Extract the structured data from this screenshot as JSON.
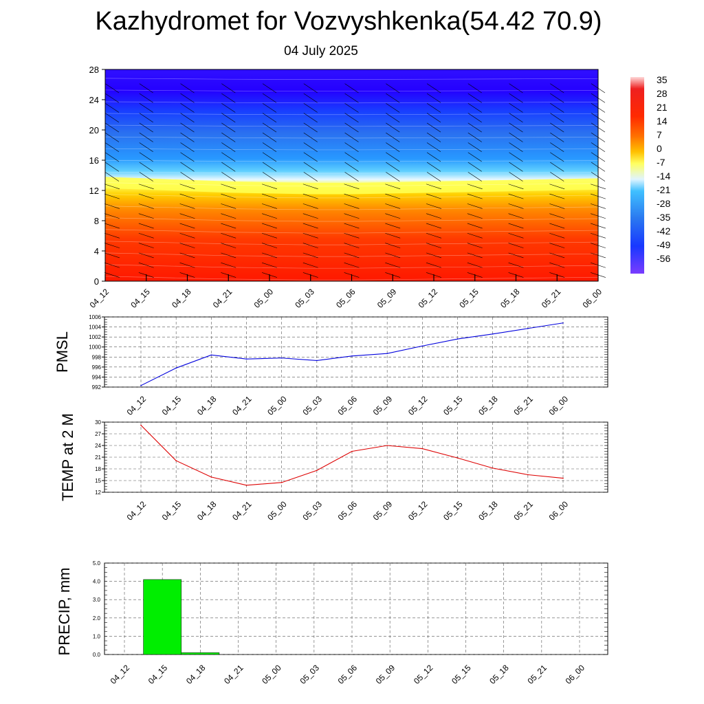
{
  "title": "Kazhydromet for Vozvyshkenka(54.42 70.9)",
  "subtitle": "04 July 2025",
  "chart_data": [
    {
      "type": "heatmap",
      "title": "",
      "ylim": [
        0,
        28
      ],
      "yticks": [
        "0",
        "4",
        "8",
        "12",
        "16",
        "20",
        "24",
        "28"
      ],
      "x": [
        "04_12",
        "04_15",
        "04_18",
        "04_21",
        "05_00",
        "05_03",
        "05_06",
        "05_09",
        "05_12",
        "05_15",
        "05_18",
        "05_21",
        "06_00"
      ],
      "colorbar_labels": [
        "35",
        "28",
        "21",
        "14",
        "7",
        "0",
        "-7",
        "-14",
        "-21",
        "-28",
        "-35",
        "-42",
        "-49",
        "-56"
      ],
      "freezing_level": [
        13.2,
        13.0,
        12.8,
        12.6,
        12.5,
        12.4,
        12.4,
        12.5,
        12.6,
        12.7,
        12.8,
        12.9,
        13.0
      ],
      "colors": {
        "warm": "#ff2200",
        "hot": "#ff5500",
        "yellow": "#ffff40",
        "cyan": "#40c8ff",
        "blue": "#1040ff",
        "dark": "#2a00ff"
      }
    },
    {
      "type": "line",
      "ylabel": "PMSL",
      "x": [
        "04_12",
        "04_15",
        "04_18",
        "04_21",
        "05_00",
        "05_03",
        "05_06",
        "05_09",
        "05_12",
        "05_15",
        "05_18",
        "05_21",
        "06_00"
      ],
      "ylim": [
        992,
        1006
      ],
      "yticks": [
        "992",
        "994",
        "996",
        "998",
        "1000",
        "1002",
        "1004",
        "1006"
      ],
      "series": [
        {
          "values": [
            992.3,
            995.8,
            998.4,
            997.6,
            997.8,
            997.3,
            998.2,
            998.7,
            1000.2,
            1001.6,
            1002.6,
            1003.7,
            1004.8
          ],
          "color": "#0000dd"
        }
      ]
    },
    {
      "type": "line",
      "ylabel": "TEMP at 2 M",
      "x": [
        "04_12",
        "04_15",
        "04_18",
        "04_21",
        "05_00",
        "05_03",
        "05_06",
        "05_09",
        "05_12",
        "05_15",
        "05_18",
        "05_21",
        "06_00"
      ],
      "ylim": [
        12,
        30
      ],
      "yticks": [
        "12",
        "15",
        "18",
        "21",
        "24",
        "27",
        "30"
      ],
      "series": [
        {
          "values": [
            29.2,
            20.1,
            15.9,
            13.8,
            14.5,
            17.6,
            22.5,
            24.0,
            23.2,
            20.8,
            18.2,
            16.5,
            15.6
          ],
          "color": "#dd0000"
        }
      ]
    },
    {
      "type": "bar",
      "ylabel": "PRECIP, mm",
      "categories": [
        "04_12",
        "04_15",
        "04_18",
        "04_21",
        "05_00",
        "05_03",
        "05_06",
        "05_09",
        "05_12",
        "05_15",
        "05_18",
        "05_21",
        "06_00"
      ],
      "ylim": [
        0,
        5
      ],
      "yticks": [
        "0.0",
        "1.0",
        "2.0",
        "3.0",
        "4.0",
        "5.0"
      ],
      "values": [
        0,
        4.1,
        0.1,
        0,
        0,
        0,
        0,
        0,
        0,
        0,
        0,
        0,
        0
      ],
      "color": "#00ee00"
    }
  ]
}
